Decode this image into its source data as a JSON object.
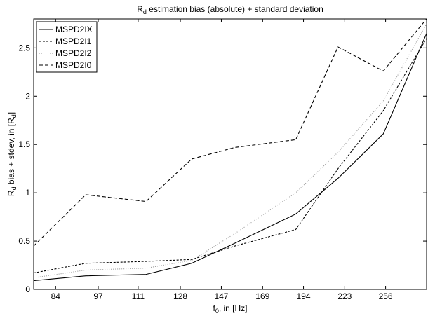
{
  "chart_data": {
    "type": "line",
    "title": [
      "R",
      "d",
      " estimation bias (absolute) + standard deviation"
    ],
    "xlabel": [
      "f",
      "0",
      ", in [Hz]"
    ],
    "ylabel": [
      "R",
      "d",
      " bias + stdev, in [R",
      "d",
      "]"
    ],
    "xscale": "log",
    "x": [
      78,
      93,
      114,
      133,
      154,
      189,
      218,
      254,
      294
    ],
    "xlim": [
      78,
      294
    ],
    "xticks": [
      84,
      97,
      111,
      128,
      147,
      169,
      194,
      223,
      256
    ],
    "ylim": [
      0,
      2.8
    ],
    "yticks": [
      0,
      0.5,
      1,
      1.5,
      2,
      2.5
    ],
    "legend": "upper left",
    "series": [
      {
        "name": "MSPD2IX",
        "color": "#000000",
        "line_style": "solid",
        "values": [
          0.09,
          0.14,
          0.155,
          0.27,
          0.48,
          0.78,
          1.15,
          1.61,
          2.65
        ]
      },
      {
        "name": "MSPD2I1",
        "color": "#000000",
        "line_style": "dashed",
        "values": [
          0.17,
          0.27,
          0.29,
          0.31,
          0.45,
          0.62,
          1.25,
          1.85,
          2.6
        ]
      },
      {
        "name": "MSPD2I2",
        "color": "#999999",
        "line_style": "dotted",
        "values": [
          0.12,
          0.2,
          0.22,
          0.3,
          0.58,
          1.0,
          1.42,
          1.95,
          2.75
        ]
      },
      {
        "name": "MSPD2I0",
        "color": "#000000",
        "line_style": "longdash",
        "values": [
          0.45,
          0.98,
          0.91,
          1.35,
          1.47,
          1.55,
          2.51,
          2.26,
          2.8
        ]
      }
    ]
  }
}
